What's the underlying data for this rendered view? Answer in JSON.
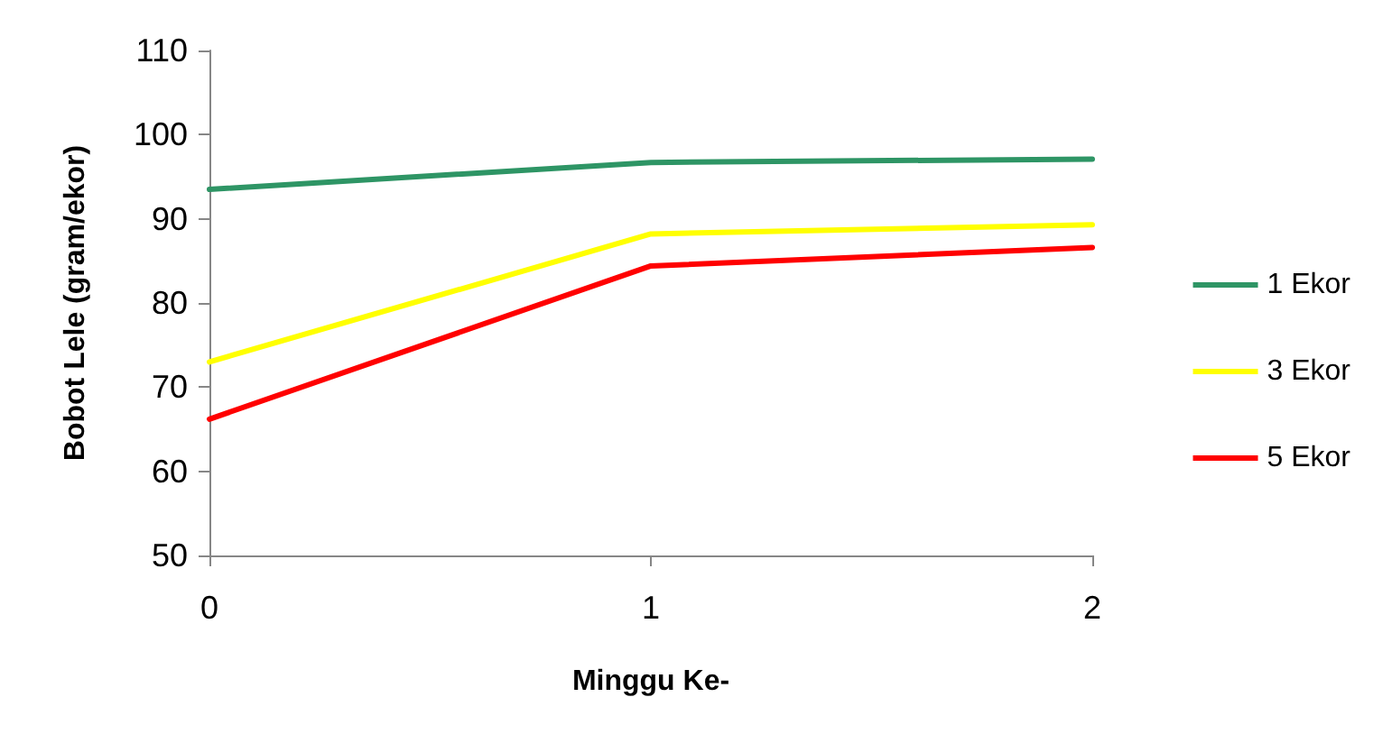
{
  "chart_data": {
    "type": "line",
    "xlabel": "Minggu Ke-",
    "ylabel": "Bobot Lele (gram/ekor)",
    "x": [
      0,
      1,
      2
    ],
    "xlim": [
      0,
      2
    ],
    "xticks": [
      0,
      1,
      2
    ],
    "ylim": [
      50,
      110
    ],
    "yticks": [
      50,
      60,
      70,
      80,
      90,
      100,
      110
    ],
    "grid": false,
    "legend": "right",
    "marker": "none",
    "line_style": "solid",
    "series": [
      {
        "name": "1 Ekor",
        "color": "#2e9565",
        "values": [
          93.5,
          96.7,
          97.1
        ]
      },
      {
        "name": "3 Ekor",
        "color": "#ffff00",
        "values": [
          73.0,
          88.2,
          89.3
        ]
      },
      {
        "name": "5 Ekor",
        "color": "#ff0000",
        "values": [
          66.2,
          84.4,
          86.6
        ]
      }
    ]
  }
}
